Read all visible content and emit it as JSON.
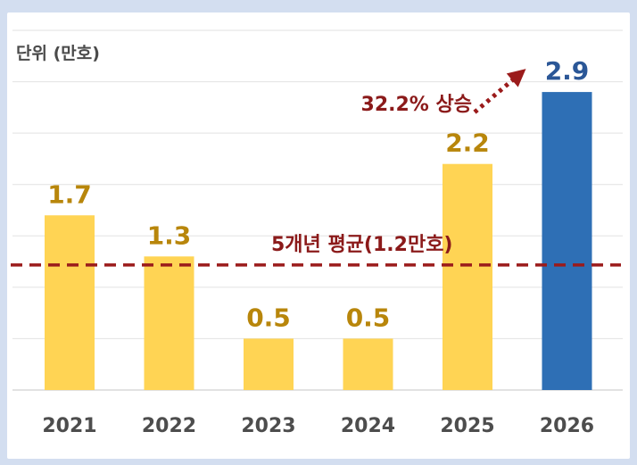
{
  "chart_data": {
    "type": "bar",
    "unit_label": "단위 (만호)",
    "categories": [
      "2021",
      "2022",
      "2023",
      "2024",
      "2025",
      "2026"
    ],
    "values": [
      1.7,
      1.3,
      0.5,
      0.5,
      2.2,
      2.9
    ],
    "data_labels": [
      "1.7",
      "1.3",
      "0.5",
      "0.5",
      "2.2",
      "2.9"
    ],
    "ylim": [
      0,
      3.5
    ],
    "grid": true,
    "colors": {
      "bar": "#ffd454",
      "highlight_bar": "#2e6fb5",
      "label": "#b8860b",
      "highlight_label": "#2b5797",
      "average_line": "#9b1b1b",
      "arrow": "#9b1b1b",
      "grid": "#e2e2e2"
    },
    "highlight_index": 5,
    "average": {
      "value": 1.2,
      "label": "5개년 평균(1.2만호)"
    },
    "growth": {
      "label": "32.2% 상승",
      "from_index": 4,
      "to_index": 5
    }
  }
}
